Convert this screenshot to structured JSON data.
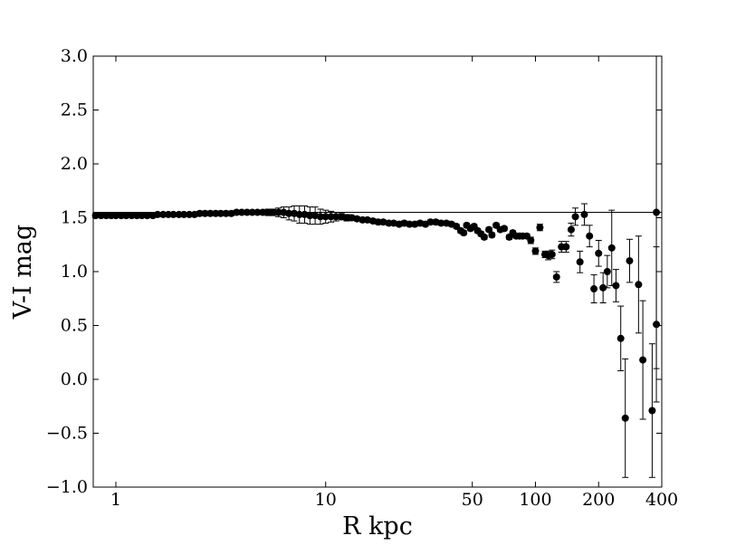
{
  "chart_data": {
    "type": "scatter",
    "title": "",
    "xlabel": "R kpc",
    "ylabel": "V-I mag",
    "xscale": "log",
    "xlim": [
      0.78,
      400
    ],
    "ylim": [
      -1.0,
      3.0
    ],
    "x_ticks": [
      1,
      10,
      50,
      100,
      200,
      400
    ],
    "x_tick_labels": [
      "1",
      "10",
      "50",
      "100",
      "200",
      "400"
    ],
    "y_ticks": [
      -1.0,
      -0.5,
      0.0,
      0.5,
      1.0,
      1.5,
      2.0,
      2.5,
      3.0
    ],
    "y_tick_labels": [
      "−1.0",
      "−0.5",
      "0.0",
      "0.5",
      "1.0",
      "1.5",
      "2.0",
      "2.5",
      "3.0"
    ],
    "grid": false,
    "reference_line": {
      "y": 1.55,
      "color": "#000000"
    },
    "marker_color": "#000000",
    "points": [
      {
        "x": 0.8,
        "y": 1.52,
        "err": 0.02
      },
      {
        "x": 0.85,
        "y": 1.52,
        "err": 0.02
      },
      {
        "x": 0.9,
        "y": 1.52,
        "err": 0.02
      },
      {
        "x": 0.95,
        "y": 1.52,
        "err": 0.02
      },
      {
        "x": 1.0,
        "y": 1.52,
        "err": 0.02
      },
      {
        "x": 1.06,
        "y": 1.52,
        "err": 0.02
      },
      {
        "x": 1.12,
        "y": 1.52,
        "err": 0.02
      },
      {
        "x": 1.19,
        "y": 1.52,
        "err": 0.02
      },
      {
        "x": 1.26,
        "y": 1.52,
        "err": 0.02
      },
      {
        "x": 1.33,
        "y": 1.52,
        "err": 0.02
      },
      {
        "x": 1.41,
        "y": 1.52,
        "err": 0.02
      },
      {
        "x": 1.5,
        "y": 1.52,
        "err": 0.02
      },
      {
        "x": 1.58,
        "y": 1.53,
        "err": 0.02
      },
      {
        "x": 1.68,
        "y": 1.53,
        "err": 0.02
      },
      {
        "x": 1.78,
        "y": 1.53,
        "err": 0.02
      },
      {
        "x": 1.88,
        "y": 1.53,
        "err": 0.02
      },
      {
        "x": 2.0,
        "y": 1.53,
        "err": 0.02
      },
      {
        "x": 2.11,
        "y": 1.53,
        "err": 0.02
      },
      {
        "x": 2.24,
        "y": 1.53,
        "err": 0.02
      },
      {
        "x": 2.37,
        "y": 1.53,
        "err": 0.02
      },
      {
        "x": 2.51,
        "y": 1.54,
        "err": 0.02
      },
      {
        "x": 2.66,
        "y": 1.54,
        "err": 0.02
      },
      {
        "x": 2.82,
        "y": 1.54,
        "err": 0.02
      },
      {
        "x": 2.99,
        "y": 1.54,
        "err": 0.02
      },
      {
        "x": 3.16,
        "y": 1.54,
        "err": 0.02
      },
      {
        "x": 3.35,
        "y": 1.54,
        "err": 0.02
      },
      {
        "x": 3.55,
        "y": 1.54,
        "err": 0.02
      },
      {
        "x": 3.76,
        "y": 1.55,
        "err": 0.02
      },
      {
        "x": 3.98,
        "y": 1.55,
        "err": 0.02
      },
      {
        "x": 4.22,
        "y": 1.55,
        "err": 0.02
      },
      {
        "x": 4.47,
        "y": 1.55,
        "err": 0.02
      },
      {
        "x": 4.73,
        "y": 1.55,
        "err": 0.02
      },
      {
        "x": 5.01,
        "y": 1.55,
        "err": 0.02
      },
      {
        "x": 5.31,
        "y": 1.55,
        "err": 0.03
      },
      {
        "x": 5.62,
        "y": 1.55,
        "err": 0.03
      },
      {
        "x": 5.96,
        "y": 1.55,
        "err": 0.04
      },
      {
        "x": 6.31,
        "y": 1.55,
        "err": 0.05
      },
      {
        "x": 6.68,
        "y": 1.54,
        "err": 0.06
      },
      {
        "x": 7.08,
        "y": 1.54,
        "err": 0.07
      },
      {
        "x": 7.5,
        "y": 1.53,
        "err": 0.08
      },
      {
        "x": 7.94,
        "y": 1.53,
        "err": 0.08
      },
      {
        "x": 8.41,
        "y": 1.52,
        "err": 0.08
      },
      {
        "x": 8.91,
        "y": 1.52,
        "err": 0.08
      },
      {
        "x": 9.44,
        "y": 1.51,
        "err": 0.07
      },
      {
        "x": 10.0,
        "y": 1.51,
        "err": 0.06
      },
      {
        "x": 10.6,
        "y": 1.51,
        "err": 0.05
      },
      {
        "x": 11.2,
        "y": 1.51,
        "err": 0.04
      },
      {
        "x": 11.9,
        "y": 1.51,
        "err": 0.03
      },
      {
        "x": 12.6,
        "y": 1.5,
        "err": 0.03
      },
      {
        "x": 13.3,
        "y": 1.5,
        "err": 0.02
      },
      {
        "x": 14.1,
        "y": 1.49,
        "err": 0.02
      },
      {
        "x": 15.0,
        "y": 1.48,
        "err": 0.02
      },
      {
        "x": 15.8,
        "y": 1.48,
        "err": 0.02
      },
      {
        "x": 16.8,
        "y": 1.47,
        "err": 0.02
      },
      {
        "x": 17.8,
        "y": 1.46,
        "err": 0.02
      },
      {
        "x": 18.8,
        "y": 1.46,
        "err": 0.02
      },
      {
        "x": 20.0,
        "y": 1.45,
        "err": 0.02
      },
      {
        "x": 21.1,
        "y": 1.45,
        "err": 0.02
      },
      {
        "x": 22.4,
        "y": 1.44,
        "err": 0.02
      },
      {
        "x": 23.7,
        "y": 1.45,
        "err": 0.02
      },
      {
        "x": 25.1,
        "y": 1.44,
        "err": 0.02
      },
      {
        "x": 26.6,
        "y": 1.44,
        "err": 0.02
      },
      {
        "x": 28.2,
        "y": 1.45,
        "err": 0.02
      },
      {
        "x": 29.9,
        "y": 1.44,
        "err": 0.02
      },
      {
        "x": 31.6,
        "y": 1.46,
        "err": 0.02
      },
      {
        "x": 33.5,
        "y": 1.46,
        "err": 0.02
      },
      {
        "x": 35.5,
        "y": 1.45,
        "err": 0.02
      },
      {
        "x": 37.6,
        "y": 1.45,
        "err": 0.02
      },
      {
        "x": 39.8,
        "y": 1.44,
        "err": 0.02
      },
      {
        "x": 42.0,
        "y": 1.42,
        "err": 0.02
      },
      {
        "x": 44.0,
        "y": 1.38,
        "err": 0.02
      },
      {
        "x": 45.5,
        "y": 1.36,
        "err": 0.02
      },
      {
        "x": 47.0,
        "y": 1.43,
        "err": 0.02
      },
      {
        "x": 49.0,
        "y": 1.4,
        "err": 0.02
      },
      {
        "x": 51.0,
        "y": 1.42,
        "err": 0.02
      },
      {
        "x": 53.0,
        "y": 1.38,
        "err": 0.02
      },
      {
        "x": 55.0,
        "y": 1.35,
        "err": 0.02
      },
      {
        "x": 57.0,
        "y": 1.32,
        "err": 0.02
      },
      {
        "x": 60.0,
        "y": 1.39,
        "err": 0.02
      },
      {
        "x": 62.0,
        "y": 1.34,
        "err": 0.02
      },
      {
        "x": 65.0,
        "y": 1.43,
        "err": 0.02
      },
      {
        "x": 68.0,
        "y": 1.39,
        "err": 0.02
      },
      {
        "x": 71.0,
        "y": 1.4,
        "err": 0.02
      },
      {
        "x": 75.0,
        "y": 1.32,
        "err": 0.02
      },
      {
        "x": 78.0,
        "y": 1.36,
        "err": 0.02
      },
      {
        "x": 81.0,
        "y": 1.33,
        "err": 0.02
      },
      {
        "x": 84.0,
        "y": 1.33,
        "err": 0.02
      },
      {
        "x": 87.0,
        "y": 1.33,
        "err": 0.02
      },
      {
        "x": 91.0,
        "y": 1.33,
        "err": 0.02
      },
      {
        "x": 95.0,
        "y": 1.29,
        "err": 0.03
      },
      {
        "x": 100.0,
        "y": 1.19,
        "err": 0.03
      },
      {
        "x": 105.0,
        "y": 1.41,
        "err": 0.03
      },
      {
        "x": 111.0,
        "y": 1.16,
        "err": 0.03
      },
      {
        "x": 115.0,
        "y": 1.15,
        "err": 0.04
      },
      {
        "x": 120.0,
        "y": 1.16,
        "err": 0.04
      },
      {
        "x": 126.0,
        "y": 0.95,
        "err": 0.05
      },
      {
        "x": 133.0,
        "y": 1.23,
        "err": 0.05
      },
      {
        "x": 140.0,
        "y": 1.23,
        "err": 0.05
      },
      {
        "x": 148.0,
        "y": 1.39,
        "err": 0.06
      },
      {
        "x": 155.0,
        "y": 1.51,
        "err": 0.08
      },
      {
        "x": 163.0,
        "y": 1.09,
        "err": 0.1
      },
      {
        "x": 171.0,
        "y": 1.53,
        "err": 0.1
      },
      {
        "x": 181.0,
        "y": 1.33,
        "err": 0.1
      },
      {
        "x": 190.0,
        "y": 0.84,
        "err": 0.13
      },
      {
        "x": 200.0,
        "y": 1.17,
        "err": 0.12
      },
      {
        "x": 210.0,
        "y": 0.85,
        "err": 0.14
      },
      {
        "x": 220.0,
        "y": 1.0,
        "err": 0.15
      },
      {
        "x": 231.0,
        "y": 1.22,
        "err": 0.35
      },
      {
        "x": 242.0,
        "y": 0.87,
        "err": 0.15
      },
      {
        "x": 255.0,
        "y": 0.38,
        "err": 0.3
      },
      {
        "x": 268.0,
        "y": -0.36,
        "err": 0.55
      },
      {
        "x": 281.0,
        "y": 1.1,
        "err": 0.2
      },
      {
        "x": 310.0,
        "y": 0.88,
        "err": 0.45
      },
      {
        "x": 325.0,
        "y": 0.18,
        "err": 0.55
      },
      {
        "x": 360.0,
        "y": -0.29,
        "err": 0.62
      },
      {
        "x": 377.0,
        "y": 0.51,
        "err": 0.72
      },
      {
        "x": 377.0,
        "y": 1.55,
        "err": 1.45
      }
    ]
  }
}
